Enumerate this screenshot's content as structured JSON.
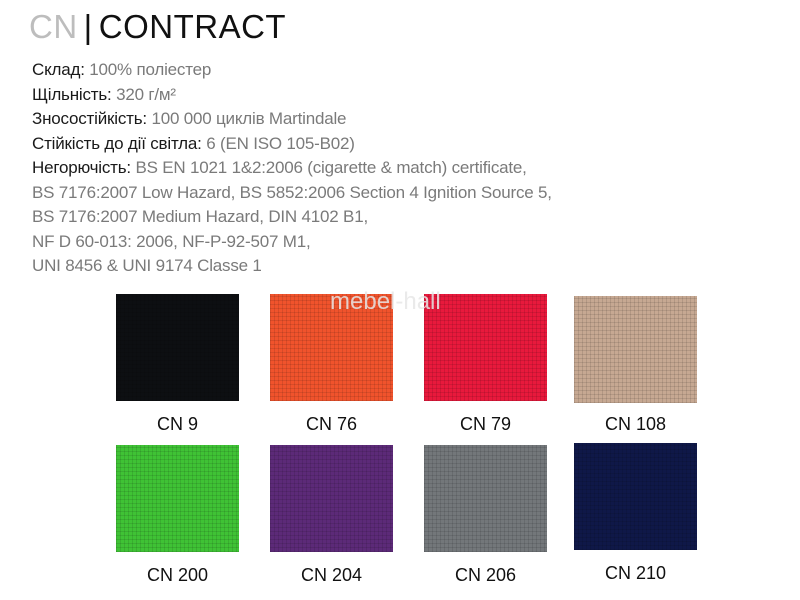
{
  "header": {
    "code": "CN",
    "separator": "|",
    "name": "CONTRACT"
  },
  "specs": [
    {
      "label": "Склад:",
      "value": "100% поліестер"
    },
    {
      "label": "Щільність:",
      "value": "320 г/м²"
    },
    {
      "label": "Зносостійкість:",
      "value": "100 000 циклів Martindale"
    },
    {
      "label": "Стійкість до дії світла:",
      "value": "6 (EN ISO 105-B02)"
    },
    {
      "label": "Негорючість:",
      "value": "BS EN 1021 1&2:2006 (cigarette & match) certificate,"
    }
  ],
  "spec_continuation": [
    "BS 7176:2007 Low Hazard, BS 5852:2006 Section 4 Ignition Source 5,",
    "BS 7176:2007 Medium Hazard, DIN 4102 B1,",
    "NF D 60-013: 2006, NF-P-92-507 M1,",
    "UNI 8456 & UNI 9174 Classe 1"
  ],
  "watermark": "mebel-hall",
  "swatches": [
    {
      "label": "CN 9",
      "color": "#0d0f12"
    },
    {
      "label": "CN 76",
      "color": "#f0532c"
    },
    {
      "label": "CN 79",
      "color": "#e8193c"
    },
    {
      "label": "CN 108",
      "color": "#c6a892"
    },
    {
      "label": "CN 200",
      "color": "#3fc235"
    },
    {
      "label": "CN 204",
      "color": "#5c2a78"
    },
    {
      "label": "CN 206",
      "color": "#73777a"
    },
    {
      "label": "CN 210",
      "color": "#0f1848"
    }
  ]
}
